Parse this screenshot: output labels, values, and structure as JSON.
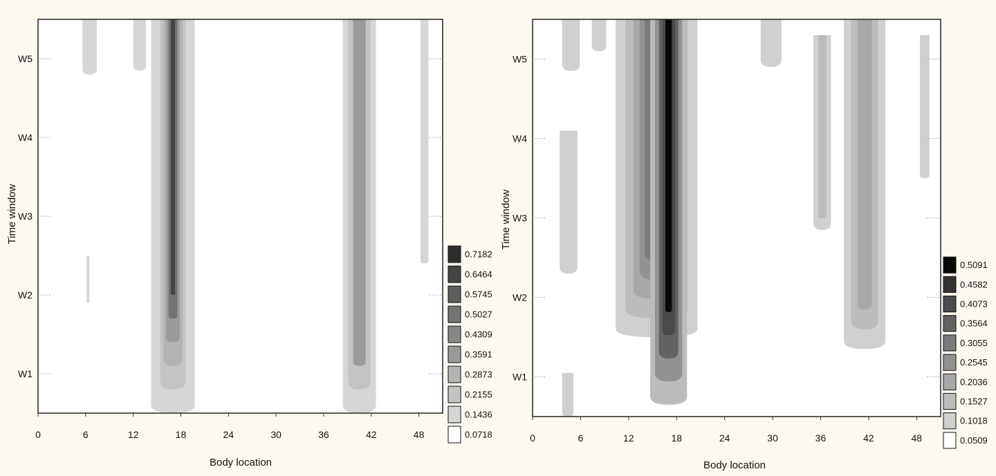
{
  "chart_data": [
    {
      "type": "heatmap",
      "xlabel": "Body location",
      "ylabel": "Time window",
      "xlim": [
        0,
        51
      ],
      "x_ticks": [
        "0",
        "6",
        "12",
        "18",
        "24",
        "30",
        "36",
        "42",
        "48"
      ],
      "y_ticks": [
        "W1",
        "W2",
        "W3",
        "W4",
        "W5"
      ],
      "legend": {
        "placement": "right",
        "levels": [
          "0.7182",
          "0.6464",
          "0.5745",
          "0.5027",
          "0.4309",
          "0.3591",
          "0.2873",
          "0.2155",
          "0.1436",
          "0.0718"
        ],
        "colors": [
          "#2e2e2e",
          "#444444",
          "#5e5e5e",
          "#747474",
          "#878787",
          "#9a9a9a",
          "#b3b3b3",
          "#c4c4c4",
          "#d6d6d6",
          "#ffffff"
        ]
      },
      "blobs": [
        {
          "x": 17,
          "y_from": 0.5,
          "y_to": 5.5,
          "widths": [
            5.5,
            3.2,
            2.4,
            1.7,
            1.1,
            0.55
          ],
          "levels": [
            "0.1436",
            "0.2155",
            "0.2873",
            "0.3591",
            "0.5027",
            "0.6464"
          ]
        },
        {
          "x": 40.5,
          "y_from": 0.5,
          "y_to": 5.5,
          "widths": [
            4.2,
            2.8,
            1.6
          ],
          "levels": [
            "0.1436",
            "0.2155",
            "0.3591"
          ]
        },
        {
          "x": 6.5,
          "y_from": 4.8,
          "y_to": 5.5,
          "widths": [
            1.8
          ],
          "levels": [
            "0.1436"
          ]
        },
        {
          "x": 12.8,
          "y_from": 4.85,
          "y_to": 5.5,
          "widths": [
            1.6
          ],
          "levels": [
            "0.1436"
          ]
        },
        {
          "x": 48.7,
          "y_from": 2.4,
          "y_to": 5.5,
          "widths": [
            1.0
          ],
          "levels": [
            "0.1436"
          ]
        },
        {
          "x": 6.3,
          "y_from": 1.9,
          "y_to": 2.5,
          "widths": [
            0.35
          ],
          "levels": [
            "0.1436"
          ]
        }
      ]
    },
    {
      "type": "heatmap",
      "xlabel": "Body location",
      "ylabel": "Time window",
      "xlim": [
        0,
        51
      ],
      "x_ticks": [
        "0",
        "6",
        "12",
        "18",
        "24",
        "30",
        "36",
        "42",
        "48"
      ],
      "y_ticks": [
        "W1",
        "W2",
        "W3",
        "W4",
        "W5"
      ],
      "legend": {
        "placement": "right",
        "levels": [
          "0.5091",
          "0.4582",
          "0.4073",
          "0.3564",
          "0.3055",
          "0.2545",
          "0.2036",
          "0.1527",
          "0.1018",
          "0.0509"
        ],
        "colors": [
          "#080808",
          "#333333",
          "#4a4a4a",
          "#626262",
          "#7b7b7b",
          "#929292",
          "#a8a8a8",
          "#bcbcbc",
          "#d0d0d0",
          "#ffffff"
        ]
      },
      "blobs": [
        {
          "x": 15.5,
          "y_from": 1.5,
          "y_to": 5.5,
          "widths": [
            10.2,
            7.8,
            5.8,
            4.2,
            3.0
          ],
          "levels": [
            "0.1018",
            "0.1527",
            "0.2036",
            "0.2545",
            "0.3055"
          ]
        },
        {
          "x": 17,
          "y_from": 0.65,
          "y_to": 5.5,
          "widths": [
            4.6,
            3.4,
            2.4,
            1.6,
            0.8
          ],
          "levels": [
            "0.1527",
            "0.2545",
            "0.3564",
            "0.4073",
            "0.5091"
          ]
        },
        {
          "x": 41.5,
          "y_from": 1.35,
          "y_to": 5.5,
          "widths": [
            5.2,
            3.4,
            1.8
          ],
          "levels": [
            "0.1018",
            "0.1527",
            "0.2036"
          ]
        },
        {
          "x": 36.2,
          "y_from": 2.85,
          "y_to": 5.3,
          "widths": [
            2.2,
            1.0
          ],
          "levels": [
            "0.1018",
            "0.1527"
          ]
        },
        {
          "x": 4.5,
          "y_from": 2.3,
          "y_to": 4.1,
          "widths": [
            2.2
          ],
          "levels": [
            "0.1018"
          ]
        },
        {
          "x": 4.8,
          "y_from": 4.85,
          "y_to": 5.5,
          "widths": [
            2.2
          ],
          "levels": [
            "0.1018"
          ]
        },
        {
          "x": 8.3,
          "y_from": 5.1,
          "y_to": 5.5,
          "widths": [
            1.8
          ],
          "levels": [
            "0.1018"
          ]
        },
        {
          "x": 29.8,
          "y_from": 4.9,
          "y_to": 5.5,
          "widths": [
            2.6
          ],
          "levels": [
            "0.1018"
          ]
        },
        {
          "x": 4.4,
          "y_from": 0.5,
          "y_to": 1.05,
          "widths": [
            1.4
          ],
          "levels": [
            "0.1018"
          ]
        },
        {
          "x": 49,
          "y_from": 3.5,
          "y_to": 5.3,
          "widths": [
            1.2
          ],
          "levels": [
            "0.1018"
          ]
        }
      ]
    }
  ]
}
